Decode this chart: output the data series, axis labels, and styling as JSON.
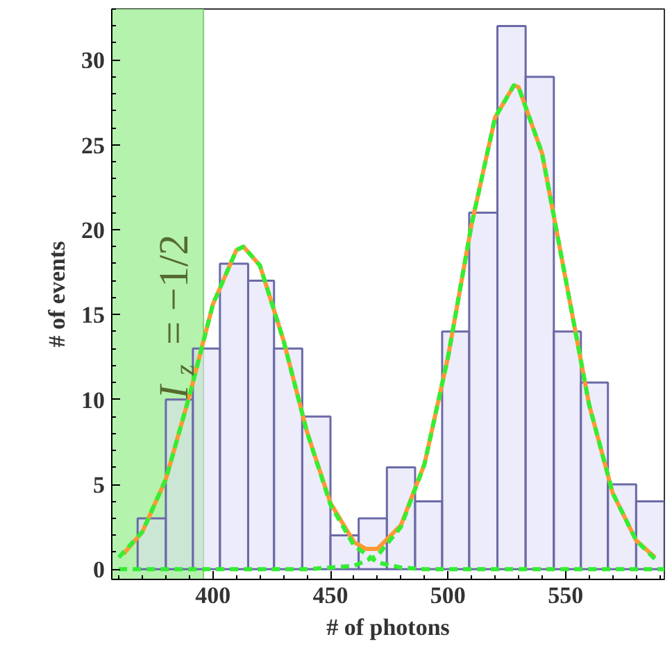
{
  "chart_data": {
    "type": "histogram",
    "xlabel": "# of photons",
    "ylabel": "# of events",
    "bins": [
      368,
      380,
      391.5,
      403,
      415,
      426,
      438,
      450,
      462,
      474,
      486,
      497.5,
      509,
      521,
      533,
      545,
      556.5,
      568,
      580,
      592
    ],
    "values": [
      3,
      10,
      13,
      18,
      17,
      13,
      9,
      2,
      3,
      6,
      4,
      14,
      21,
      32,
      29,
      14,
      11,
      5,
      4
    ],
    "color": "#dcdcf5",
    "series": [
      {
        "type": "line",
        "color": "#ff9933",
        "line_style": "solid",
        "x": [
          362,
          370,
          380,
          390,
          400,
          410,
          413,
          420,
          430,
          440,
          450,
          460,
          465,
          470,
          480,
          490,
          500,
          510,
          520,
          528,
          530,
          540,
          550,
          560,
          570,
          580,
          588
        ],
        "values": [
          0.9,
          2.2,
          5.3,
          10.2,
          15.6,
          18.8,
          19.0,
          17.9,
          13.5,
          8.1,
          3.9,
          1.6,
          1.2,
          1.2,
          2.6,
          6.2,
          12.5,
          20.3,
          26.6,
          28.5,
          28.4,
          24.5,
          17.1,
          9.7,
          4.5,
          1.7,
          0.7
        ]
      },
      {
        "type": "line",
        "color": "#33ee33",
        "line_style": "dashed",
        "x": [
          360,
          370,
          380,
          390,
          400,
          410,
          413,
          420,
          430,
          440,
          450,
          460,
          470,
          480,
          490,
          520,
          560,
          592
        ],
        "values": [
          0.7,
          2.2,
          5.3,
          10.2,
          15.6,
          18.8,
          19.0,
          17.9,
          13.5,
          8.1,
          3.8,
          1.4,
          0.4,
          0.1,
          0.0,
          0.0,
          0.0,
          0.0
        ]
      },
      {
        "type": "line",
        "color": "#33ee33",
        "line_style": "dashed",
        "x": [
          360,
          420,
          440,
          450,
          460,
          470,
          480,
          490,
          500,
          510,
          520,
          528,
          530,
          540,
          550,
          560,
          570,
          580,
          588
        ],
        "values": [
          0.0,
          0.0,
          0.0,
          0.1,
          0.2,
          0.8,
          2.5,
          6.2,
          12.5,
          20.3,
          26.6,
          28.5,
          28.4,
          24.5,
          17.1,
          9.7,
          4.5,
          1.7,
          0.6
        ]
      }
    ],
    "bands": [
      {
        "axis": "x",
        "from": 357,
        "to": 396,
        "label": "I$_{z}$ = −1/2",
        "color": "#a8f0a0"
      }
    ],
    "xlim": [
      357,
      592
    ],
    "ylim": [
      -0.6,
      33
    ],
    "xticks": [
      400,
      450,
      500,
      550
    ],
    "yticks": [
      0,
      5,
      10,
      15,
      20,
      25,
      30
    ],
    "grid": false
  }
}
